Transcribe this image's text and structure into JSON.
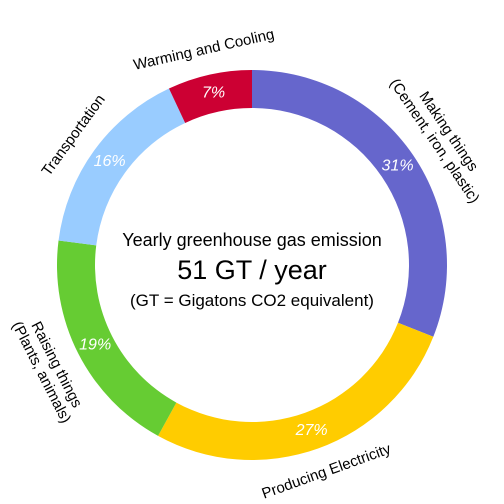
{
  "chart_data": {
    "type": "pie",
    "variant": "donut",
    "center_text": {
      "line1": "Yearly greenhouse gas emission",
      "line2": "51 GT / year",
      "line3": "(GT = Gigatons CO2 equivalent)"
    },
    "slices": [
      {
        "label_lines": [
          "Making things",
          "(Cement, iron, plastic)"
        ],
        "value": 31,
        "value_label": "31%",
        "color": "#6666cc"
      },
      {
        "label_lines": [
          "Producing Electricity"
        ],
        "value": 27,
        "value_label": "27%",
        "color": "#ffcc00"
      },
      {
        "label_lines": [
          "Raising things",
          "(Plants, animals)"
        ],
        "value": 19,
        "value_label": "19%",
        "color": "#66cc33"
      },
      {
        "label_lines": [
          "Transportation"
        ],
        "value": 16,
        "value_label": "16%",
        "color": "#99ccff"
      },
      {
        "label_lines": [
          "Warming and Cooling"
        ],
        "value": 7,
        "value_label": "7%",
        "color": "#cc0033"
      }
    ],
    "start_angle_deg": 0,
    "direction": "clockwise",
    "legend": "none"
  }
}
